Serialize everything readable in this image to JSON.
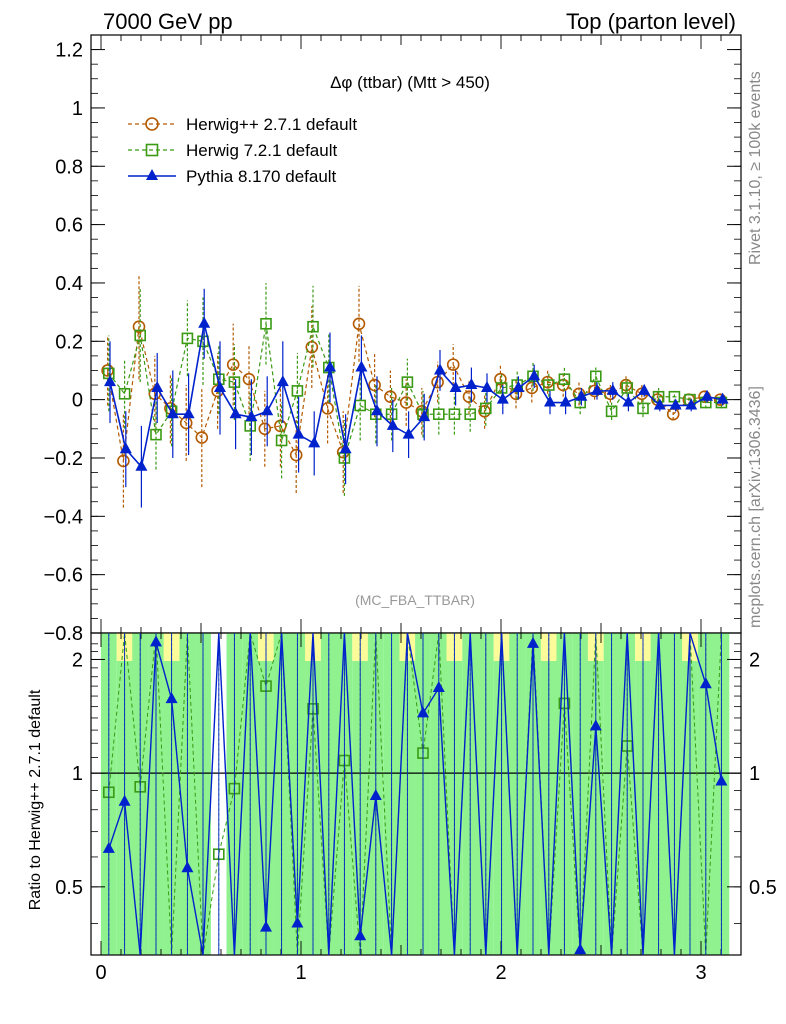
{
  "header": {
    "left": "7000 GeV pp",
    "right": "Top (parton level)"
  },
  "side_labels": {
    "rivet": "Rivet 3.1.10, ≥ 100k events",
    "mcplots": "mcplots.cern.ch [arXiv:1306.3436]"
  },
  "chart_data": [
    {
      "type": "line",
      "title": "Δφ (ttbar) (Mtt > 450)",
      "watermark": "(MC_FBA_TTBAR)",
      "xlabel": "",
      "ylabel": "",
      "xlim": [
        -0.05,
        3.2
      ],
      "ylim": [
        -0.8,
        1.25
      ],
      "yticks": [
        -0.8,
        -0.6,
        -0.4,
        -0.2,
        0,
        0.2,
        0.4,
        0.6,
        0.8,
        1,
        1.2
      ],
      "ytick_labels": [
        "−0.8",
        "−0.6",
        "−0.4",
        "−0.2",
        "0",
        "0.2",
        "0.4",
        "0.6",
        "0.8",
        "1",
        "1.2"
      ],
      "legend_position": "top-left",
      "x": [
        0.039,
        0.118,
        0.196,
        0.275,
        0.353,
        0.432,
        0.51,
        0.589,
        0.667,
        0.746,
        0.825,
        0.903,
        0.982,
        1.06,
        1.139,
        1.217,
        1.296,
        1.374,
        1.453,
        1.532,
        1.61,
        1.689,
        1.767,
        1.846,
        1.924,
        2.003,
        2.081,
        2.16,
        2.239,
        2.317,
        2.396,
        2.474,
        2.553,
        2.631,
        2.71,
        2.788,
        2.867,
        2.945,
        3.024,
        3.102
      ],
      "series": [
        {
          "name": "Herwig++ 2.7.1 default",
          "color": "#b35a00",
          "marker": "circle",
          "line": "dashed",
          "values": [
            0.1,
            -0.21,
            0.25,
            0.02,
            -0.03,
            -0.08,
            -0.13,
            0.03,
            0.12,
            0.07,
            -0.1,
            -0.09,
            -0.19,
            0.18,
            -0.03,
            -0.18,
            0.26,
            0.05,
            0.01,
            -0.01,
            -0.04,
            0.06,
            0.12,
            0.01,
            -0.04,
            0.07,
            0.02,
            0.04,
            0.06,
            0.05,
            0.02,
            0.03,
            0.02,
            0.05,
            0.02,
            0.0,
            -0.05,
            0.0,
            0.01,
            0.0
          ],
          "errors": [
            0.12,
            0.16,
            0.18,
            0.13,
            0.12,
            0.13,
            0.17,
            0.13,
            0.14,
            0.12,
            0.13,
            0.14,
            0.13,
            0.14,
            0.12,
            0.14,
            0.13,
            0.11,
            0.09,
            0.08,
            0.08,
            0.07,
            0.07,
            0.06,
            0.06,
            0.05,
            0.05,
            0.05,
            0.04,
            0.04,
            0.04,
            0.03,
            0.03,
            0.03,
            0.03,
            0.03,
            0.02,
            0.02,
            0.02,
            0.02
          ]
        },
        {
          "name": "Herwig 7.2.1 default",
          "color": "#3a9a14",
          "marker": "square",
          "line": "dashed",
          "values": [
            0.09,
            0.02,
            0.22,
            -0.12,
            -0.04,
            0.21,
            0.2,
            0.07,
            0.06,
            -0.09,
            0.26,
            -0.14,
            0.03,
            0.25,
            0.11,
            -0.2,
            -0.02,
            -0.05,
            -0.05,
            0.06,
            -0.05,
            -0.05,
            -0.05,
            -0.05,
            -0.03,
            0.04,
            0.05,
            0.08,
            0.05,
            0.07,
            -0.01,
            0.08,
            -0.04,
            0.04,
            -0.03,
            0.01,
            0.01,
            0.0,
            -0.01,
            -0.01
          ],
          "errors": [
            0.13,
            0.12,
            0.16,
            0.12,
            0.12,
            0.13,
            0.15,
            0.12,
            0.13,
            0.12,
            0.14,
            0.13,
            0.13,
            0.14,
            0.12,
            0.13,
            0.12,
            0.1,
            0.09,
            0.08,
            0.08,
            0.07,
            0.07,
            0.06,
            0.06,
            0.05,
            0.05,
            0.05,
            0.04,
            0.04,
            0.04,
            0.03,
            0.03,
            0.03,
            0.03,
            0.03,
            0.02,
            0.02,
            0.02,
            0.02
          ]
        },
        {
          "name": "Pythia 8.170 default",
          "color": "#0022cc",
          "marker": "triangle",
          "line": "solid",
          "values": [
            0.06,
            -0.17,
            -0.23,
            0.04,
            -0.05,
            -0.05,
            0.26,
            0.04,
            -0.05,
            -0.06,
            -0.04,
            0.06,
            -0.12,
            -0.15,
            0.11,
            -0.17,
            0.11,
            -0.04,
            -0.09,
            -0.12,
            -0.06,
            0.1,
            0.04,
            0.05,
            0.04,
            0.0,
            0.04,
            0.08,
            -0.01,
            -0.01,
            0.01,
            0.03,
            0.03,
            -0.01,
            0.03,
            -0.02,
            -0.02,
            -0.02,
            0.01,
            0.0
          ],
          "errors": [
            0.14,
            0.13,
            0.14,
            0.12,
            0.15,
            0.14,
            0.12,
            0.16,
            0.12,
            0.13,
            0.12,
            0.14,
            0.13,
            0.11,
            0.12,
            0.12,
            0.11,
            0.12,
            0.09,
            0.08,
            0.08,
            0.07,
            0.06,
            0.06,
            0.05,
            0.05,
            0.04,
            0.04,
            0.04,
            0.04,
            0.03,
            0.03,
            0.03,
            0.03,
            0.02,
            0.02,
            0.02,
            0.02,
            0.02,
            0.02
          ]
        }
      ]
    },
    {
      "type": "line",
      "ylabel": "Ratio to Herwig++ 2.7.1 default",
      "xlim": [
        -0.05,
        3.2
      ],
      "ylim": [
        0.33,
        2.35
      ],
      "xticks": [
        0,
        1,
        2,
        3
      ],
      "xtick_labels": [
        "0",
        "1",
        "2",
        "3"
      ],
      "yticks": [
        0.5,
        1,
        2
      ],
      "ytick_labels": [
        "0.5",
        "1",
        "2"
      ],
      "band_colors": {
        "inner": "#8ff28f",
        "outer": "#fbfb99"
      },
      "x": [
        0.039,
        0.118,
        0.196,
        0.275,
        0.353,
        0.432,
        0.51,
        0.589,
        0.667,
        0.746,
        0.825,
        0.903,
        0.982,
        1.06,
        1.139,
        1.217,
        1.296,
        1.374,
        1.453,
        1.532,
        1.61,
        1.689,
        1.767,
        1.846,
        1.924,
        2.003,
        2.081,
        2.16,
        2.239,
        2.317,
        2.396,
        2.474,
        2.553,
        2.631,
        2.71,
        2.788,
        2.867,
        2.945,
        3.024,
        3.102
      ],
      "band_inner": [
        [
          0.3,
          3.0
        ],
        [
          0.3,
          3.0
        ],
        [
          0.3,
          3.0
        ],
        [
          0.3,
          3.0
        ],
        [
          0.3,
          3.0
        ],
        [
          0.3,
          3.0
        ],
        [
          0.3,
          3.0
        ],
        [
          null,
          null
        ],
        [
          0.3,
          3.0
        ],
        [
          0.3,
          3.0
        ],
        [
          0.3,
          3.0
        ],
        [
          0.3,
          3.0
        ],
        [
          0.3,
          3.0
        ],
        [
          0.3,
          3.0
        ],
        [
          0.3,
          3.0
        ],
        [
          0.3,
          3.0
        ],
        [
          0.3,
          3.0
        ],
        [
          0.3,
          3.0
        ],
        [
          0.3,
          3.0
        ],
        [
          0.3,
          3.0
        ],
        [
          0.3,
          3.0
        ],
        [
          0.3,
          3.0
        ],
        [
          0.3,
          3.0
        ],
        [
          0.3,
          3.0
        ],
        [
          0.3,
          3.0
        ],
        [
          0.3,
          3.0
        ],
        [
          0.3,
          3.0
        ],
        [
          0.3,
          3.0
        ],
        [
          0.3,
          3.0
        ],
        [
          0.3,
          3.0
        ],
        [
          0.3,
          3.0
        ],
        [
          0.3,
          3.0
        ],
        [
          0.3,
          3.0
        ],
        [
          0.3,
          3.0
        ],
        [
          0.3,
          3.0
        ],
        [
          0.3,
          3.0
        ],
        [
          0.3,
          3.0
        ],
        [
          0.3,
          3.0
        ],
        [
          0.3,
          3.0
        ],
        [
          0.3,
          3.0
        ]
      ],
      "series": [
        {
          "name": "Herwig 7.2.1 default",
          "color": "#3a9a14",
          "marker": "square",
          "line": "dashed",
          "values": [
            0.89,
            null,
            0.92,
            null,
            null,
            null,
            null,
            0.61,
            0.91,
            null,
            1.7,
            null,
            null,
            1.48,
            null,
            1.08,
            null,
            null,
            null,
            null,
            1.13,
            null,
            null,
            null,
            null,
            null,
            null,
            null,
            null,
            1.53,
            null,
            null,
            null,
            1.18,
            null,
            null,
            null,
            null,
            null,
            null
          ]
        },
        {
          "name": "Pythia 8.170 default",
          "color": "#0022cc",
          "marker": "triangle",
          "line": "solid",
          "values": [
            0.63,
            0.84,
            null,
            2.22,
            1.57,
            0.56,
            null,
            null,
            null,
            null,
            0.39,
            null,
            0.4,
            null,
            null,
            null,
            0.37,
            0.87,
            null,
            null,
            1.44,
            1.68,
            null,
            null,
            null,
            null,
            null,
            2.2,
            null,
            null,
            0.34,
            1.33,
            null,
            null,
            null,
            null,
            null,
            null,
            1.72,
            0.95
          ]
        }
      ]
    }
  ]
}
